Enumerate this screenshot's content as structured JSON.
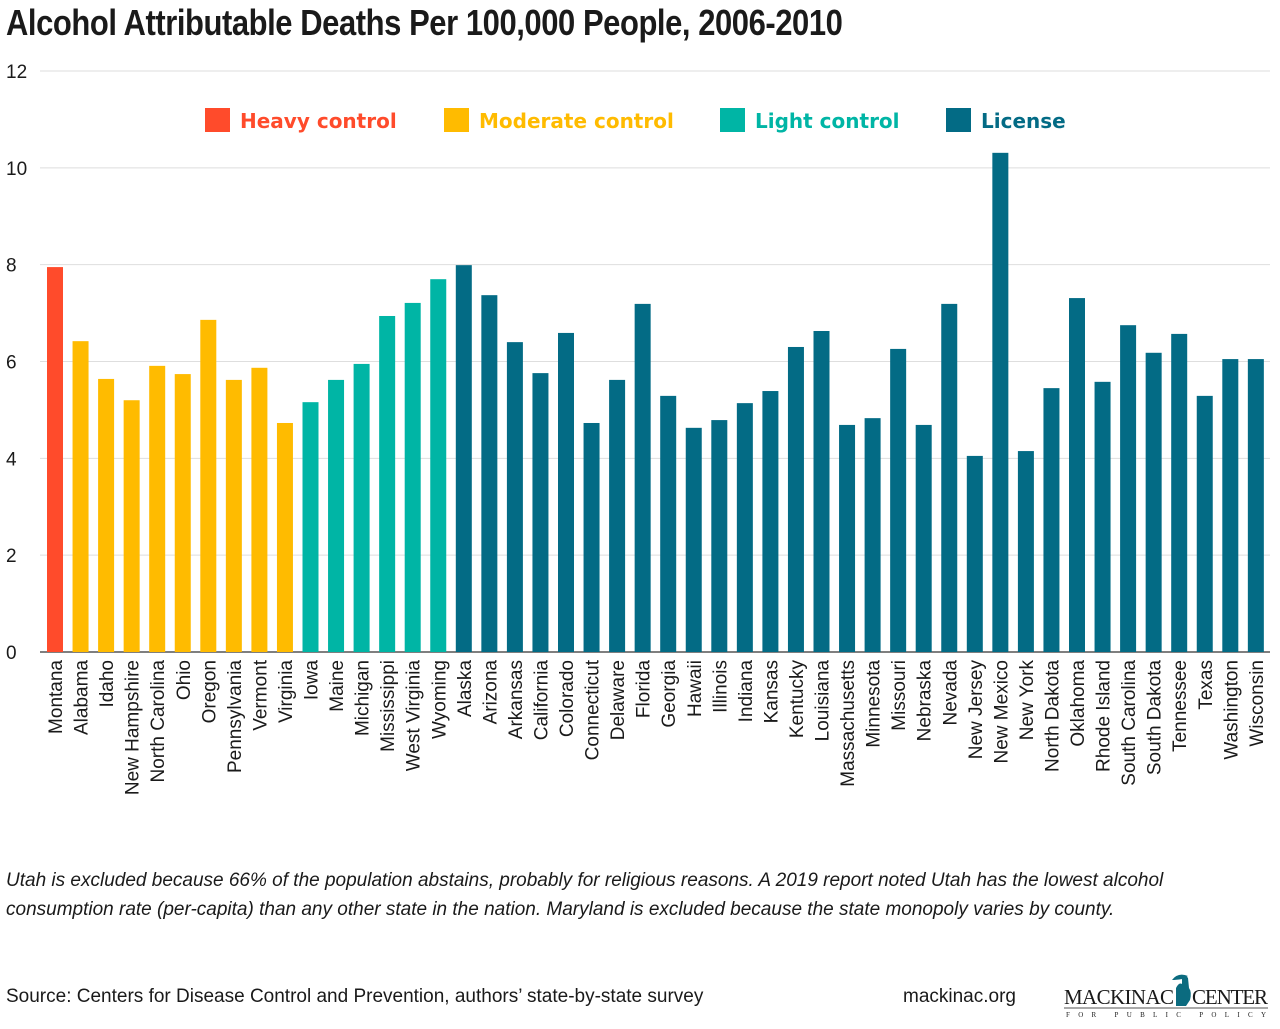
{
  "chart_data": {
    "type": "bar",
    "title": "Alcohol Attributable Deaths Per 100,000 People, 2006-2010",
    "xlabel": "",
    "ylabel": "",
    "ylim": [
      0,
      12
    ],
    "yticks": [
      "0",
      "2",
      "4",
      "6",
      "8",
      "10",
      "12"
    ],
    "grid": true,
    "legend_placement": "top",
    "legend": [
      {
        "name": "Heavy control",
        "color": "#ff4b2b"
      },
      {
        "name": "Moderate control",
        "color": "#ffbb00"
      },
      {
        "name": "Light control",
        "color": "#00b5a5"
      },
      {
        "name": "License",
        "color": "#036b85"
      }
    ],
    "categories": [
      "Montana",
      "Alabama",
      "Idaho",
      "New Hampshire",
      "North Carolina",
      "Ohio",
      "Oregon",
      "Pennsylvania",
      "Vermont",
      "Virginia",
      "Iowa",
      "Maine",
      "Michigan",
      "Mississippi",
      "West Virginia",
      "Wyoming",
      "Alaska",
      "Arizona",
      "Arkansas",
      "California",
      "Colorado",
      "Connecticut",
      "Delaware",
      "Florida",
      "Georgia",
      "Hawaii",
      "Illinois",
      "Indiana",
      "Kansas",
      "Kentucky",
      "Louisiana",
      "Massachusetts",
      "Minnesota",
      "Missouri",
      "Nebraska",
      "Nevada",
      "New Jersey",
      "New Mexico",
      "New York",
      "North Dakota",
      "Oklahoma",
      "Rhode Island",
      "South Carolina",
      "South Dakota",
      "Tennessee",
      "Texas",
      "Washington",
      "Wisconsin"
    ],
    "values": [
      7.95,
      6.42,
      5.64,
      5.2,
      5.91,
      5.74,
      6.86,
      5.62,
      5.87,
      4.73,
      5.16,
      5.62,
      5.95,
      6.94,
      7.21,
      7.7,
      7.99,
      7.37,
      6.4,
      5.76,
      6.59,
      4.73,
      5.62,
      7.19,
      5.29,
      4.63,
      4.79,
      5.14,
      5.39,
      6.3,
      6.63,
      4.69,
      4.83,
      6.26,
      4.69,
      7.19,
      4.05,
      10.31,
      4.15,
      5.45,
      7.31,
      5.58,
      6.75,
      6.18,
      6.57,
      5.29,
      6.05,
      6.05
    ],
    "groups": [
      0,
      1,
      1,
      1,
      1,
      1,
      1,
      1,
      1,
      1,
      2,
      2,
      2,
      2,
      2,
      2,
      3,
      3,
      3,
      3,
      3,
      3,
      3,
      3,
      3,
      3,
      3,
      3,
      3,
      3,
      3,
      3,
      3,
      3,
      3,
      3,
      3,
      3,
      3,
      3,
      3,
      3,
      3,
      3,
      3,
      3,
      3,
      3
    ]
  },
  "note": "Utah is excluded because 66% of the population abstains, probably for religious reasons. A 2019 report noted Utah has the lowest alcohol consumption rate (per-capita) than any other state in the nation. Maryland is excluded because the state monopoly varies by county.",
  "source": "Source: Centers for Disease Control and Prevention, authors’ state-by-state survey",
  "site": "mackinac.org",
  "logo": {
    "name": "MACKINAC CENTER",
    "sub": "FOR PUBLIC POLICY"
  }
}
